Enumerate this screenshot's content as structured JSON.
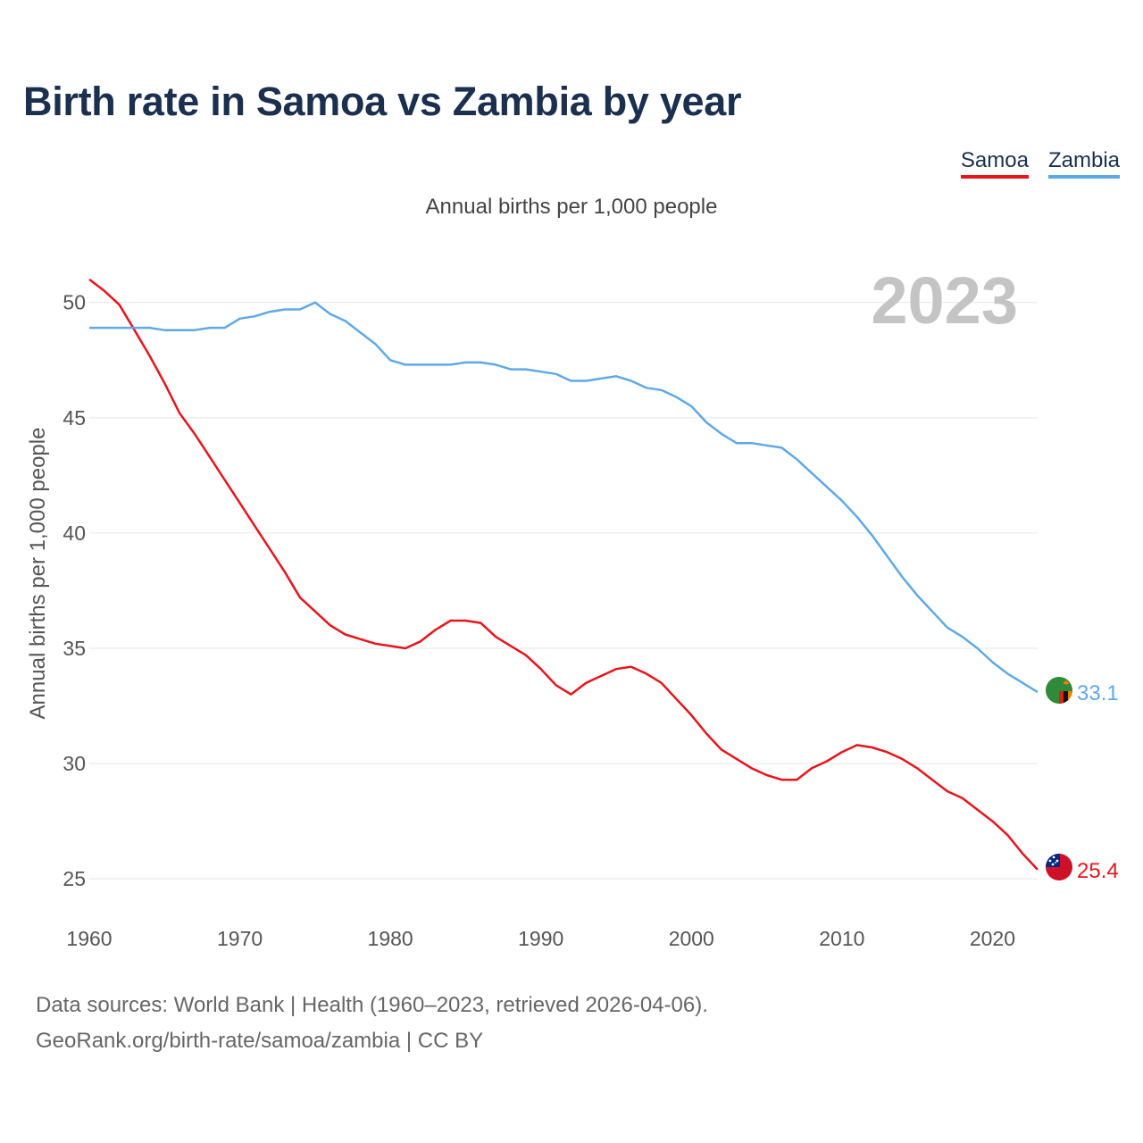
{
  "title": "Birth rate in Samoa vs Zambia by year",
  "legend": {
    "samoa": "Samoa",
    "zambia": "Zambia"
  },
  "subtitle": "Annual births per 1,000 people",
  "source": {
    "line1": "Data sources: World Bank | Health (1960–2023, retrieved 2026-04-06).",
    "line2": "GeoRank.org/birth-rate/samoa/zambia | CC BY"
  },
  "chart_data": {
    "type": "line",
    "title": "Birth rate in Samoa vs Zambia by year",
    "year_label": "2023",
    "xlabel": "",
    "ylabel": "Annual births per 1,000 people",
    "xlim": [
      1960,
      2023
    ],
    "ylim": [
      24,
      51.5
    ],
    "x_ticks": [
      1960,
      1970,
      1980,
      1990,
      2000,
      2010,
      2020
    ],
    "y_ticks": [
      25,
      30,
      35,
      40,
      45,
      50
    ],
    "grid": true,
    "legend_position": "top-right",
    "x": [
      1960,
      1961,
      1962,
      1963,
      1964,
      1965,
      1966,
      1967,
      1968,
      1969,
      1970,
      1971,
      1972,
      1973,
      1974,
      1975,
      1976,
      1977,
      1978,
      1979,
      1980,
      1981,
      1982,
      1983,
      1984,
      1985,
      1986,
      1987,
      1988,
      1989,
      1990,
      1991,
      1992,
      1993,
      1994,
      1995,
      1996,
      1997,
      1998,
      1999,
      2000,
      2001,
      2002,
      2003,
      2004,
      2005,
      2006,
      2007,
      2008,
      2009,
      2010,
      2011,
      2012,
      2013,
      2014,
      2015,
      2016,
      2017,
      2018,
      2019,
      2020,
      2021,
      2022,
      2023
    ],
    "series": [
      {
        "name": "Samoa",
        "color": "#e8141b",
        "end_label": "25.4",
        "values": [
          51.0,
          50.5,
          49.9,
          48.8,
          47.7,
          46.5,
          45.2,
          44.3,
          43.3,
          42.3,
          41.3,
          40.3,
          39.3,
          38.3,
          37.2,
          36.6,
          36.0,
          35.6,
          35.4,
          35.2,
          35.1,
          35.0,
          35.3,
          35.8,
          36.2,
          36.2,
          36.1,
          35.5,
          35.1,
          34.7,
          34.1,
          33.4,
          33.0,
          33.5,
          33.8,
          34.1,
          34.2,
          33.9,
          33.5,
          32.8,
          32.1,
          31.3,
          30.6,
          30.2,
          29.8,
          29.5,
          29.3,
          29.3,
          29.8,
          30.1,
          30.5,
          30.8,
          30.7,
          30.5,
          30.2,
          29.8,
          29.3,
          28.8,
          28.5,
          28.0,
          27.5,
          26.9,
          26.1,
          25.4
        ]
      },
      {
        "name": "Zambia",
        "color": "#5fa8e6",
        "end_label": "33.1",
        "values": [
          48.9,
          48.9,
          48.9,
          48.9,
          48.9,
          48.8,
          48.8,
          48.8,
          48.9,
          48.9,
          49.3,
          49.4,
          49.6,
          49.7,
          49.7,
          50.0,
          49.5,
          49.2,
          48.7,
          48.2,
          47.5,
          47.3,
          47.3,
          47.3,
          47.3,
          47.4,
          47.4,
          47.3,
          47.1,
          47.1,
          47.0,
          46.9,
          46.6,
          46.6,
          46.7,
          46.8,
          46.6,
          46.3,
          46.2,
          45.9,
          45.5,
          44.8,
          44.3,
          43.9,
          43.9,
          43.8,
          43.7,
          43.2,
          42.6,
          42.0,
          41.4,
          40.7,
          39.9,
          39.0,
          38.1,
          37.3,
          36.6,
          35.9,
          35.5,
          35.0,
          34.4,
          33.9,
          33.5,
          33.1
        ]
      }
    ]
  }
}
